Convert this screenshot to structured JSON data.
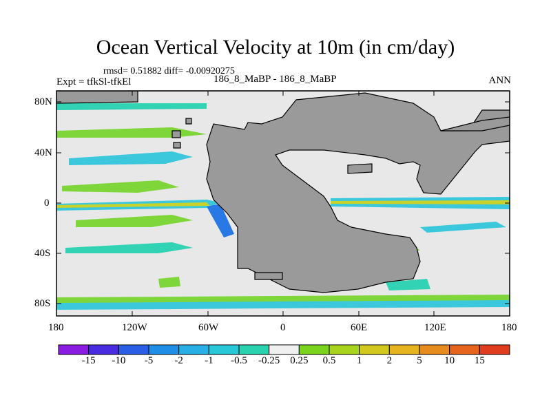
{
  "title": "Ocean Vertical Velocity at 10m (in cm/day)",
  "stats_line": "rmsd= 0.51882 diff= -0.00920275",
  "expt_label": "Expt = tfkSl-tfkEl",
  "case_label": "186_8_MaBP - 186_8_MaBP",
  "season_label": "ANN",
  "map": {
    "lat_labels": [
      "80N",
      "40N",
      "0",
      "40S",
      "80S"
    ],
    "lon_labels": [
      "180",
      "120W",
      "60W",
      "0",
      "60E",
      "120E",
      "180"
    ],
    "colors": {
      "background": "#e8e8e8",
      "land": "#9a9a9a",
      "green": "#7fd63a",
      "yellow_green": "#c8d22a",
      "cyan": "#3cc8dc",
      "teal": "#32d2b4",
      "blue": "#2878e6",
      "orange": "#e69628"
    }
  },
  "colorbar": {
    "labels": [
      "-15",
      "-10",
      "-5",
      "-2",
      "-1",
      "-0.5",
      "-0.25",
      "0.25",
      "0.5",
      "1",
      "2",
      "5",
      "10",
      "15"
    ],
    "colors": [
      "#8a1be0",
      "#4a2ce0",
      "#2a5ee6",
      "#1f8ee6",
      "#28b0e6",
      "#28c8d8",
      "#2ad2b0",
      "#f0f0f0",
      "#7ad41e",
      "#a8d41e",
      "#d2c81e",
      "#e6b41e",
      "#e68c1e",
      "#e6641e",
      "#e03c1e"
    ]
  }
}
